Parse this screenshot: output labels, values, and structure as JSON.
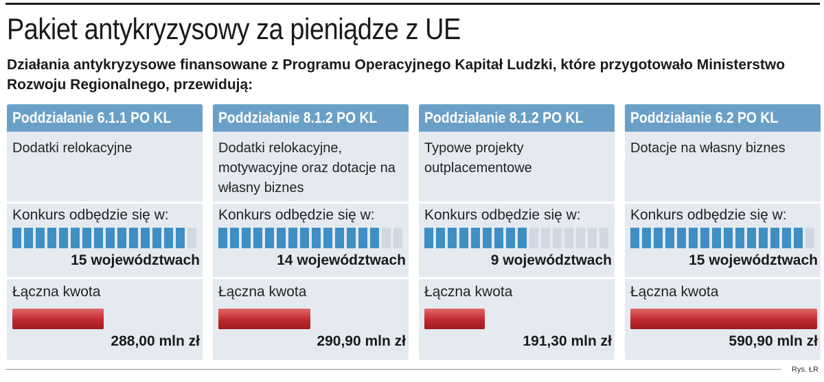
{
  "title": "Pakiet antykryzysowy za pieniądze z UE",
  "subtitle": "Działania antykryzysowe finansowane z Programu Operacyjnego Kapitał Ludzki, które przygotowało Ministerstwo Rozwoju Regionalnego, przewidują:",
  "credit": "Rys. ŁR",
  "labels": {
    "contest": "Konkurs odbędzie się w:",
    "amount": "Łączna kwota"
  },
  "colors": {
    "header": "#6aa0c7",
    "card_bg": "#e5eaf1",
    "square_on": "#3f8fc4",
    "square_off": "#d0d8e2",
    "bar": "#c0282f"
  },
  "chart_data": {
    "type": "bar",
    "categories": [
      "Poddziałanie 6.1.1 PO KL",
      "Poddziałanie 8.1.2 PO KL",
      "Poddziałanie 8.1.2 PO KL",
      "Poddziałanie 6.2 PO KL"
    ],
    "total_regions": 16,
    "bar_max": 590.9,
    "items": [
      {
        "header": "Poddziałanie 6.1.1 PO KL",
        "description": "Dodatki relokacyjne",
        "regions": 15,
        "regions_text": "15 województwach",
        "amount": 288.0,
        "amount_text": "288,00 mln zł"
      },
      {
        "header": "Poddziałanie 8.1.2 PO KL",
        "description": "Dodatki relokacyjne, motywacyjne oraz dotacje na własny biznes",
        "regions": 14,
        "regions_text": "14 województwach",
        "amount": 290.9,
        "amount_text": "290,90 mln zł"
      },
      {
        "header": "Poddziałanie 8.1.2 PO KL",
        "description": "Typowe projekty outplacementowe",
        "regions": 9,
        "regions_text": "9 województwach",
        "amount": 191.3,
        "amount_text": "191,30 mln zł"
      },
      {
        "header": "Poddziałanie 6.2 PO KL",
        "description": "Dotacje na własny biznes",
        "regions": 15,
        "regions_text": "15 województwach",
        "amount": 590.9,
        "amount_text": "590,90 mln zł"
      }
    ]
  }
}
